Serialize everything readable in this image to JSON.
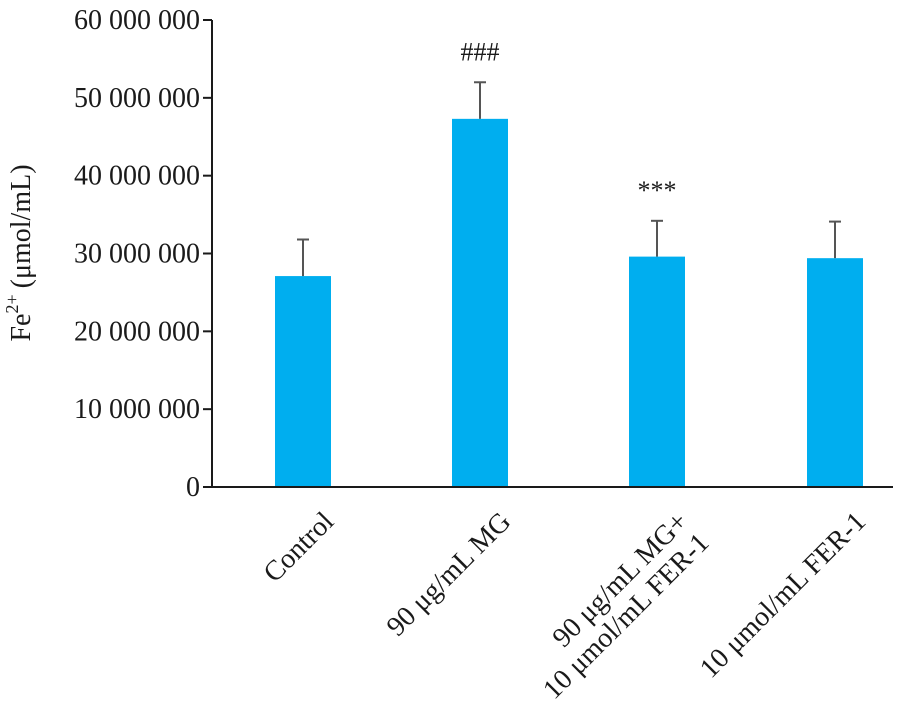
{
  "chart_data": {
    "type": "bar",
    "title": "",
    "ylabel": {
      "base": "Fe",
      "superscript": "2+",
      "unit": "(μmol/mL)"
    },
    "xlabel": "",
    "ylim": [
      0,
      60000000
    ],
    "yticks": [
      0,
      10000000,
      20000000,
      30000000,
      40000000,
      50000000,
      60000000
    ],
    "ytick_labels": [
      "0",
      "10 000 000",
      "20 000 000",
      "30 000 000",
      "40 000 000",
      "50 000 000",
      "60 000 000"
    ],
    "categories": [
      [
        "Control"
      ],
      [
        "90 μg/mL MG"
      ],
      [
        "90 μg/mL MG+",
        "10 μmol/mL FER-1"
      ],
      [
        "10 μmol/mL FER-1"
      ]
    ],
    "values": [
      27100000,
      47300000,
      29600000,
      29400000
    ],
    "errors": [
      4700000,
      4700000,
      4600000,
      4700000
    ],
    "significance": [
      "",
      "###",
      "***",
      ""
    ],
    "bar_color": "#00AEEF",
    "error_color": "#555555",
    "axis_color": "#1a1a1a",
    "grid": false,
    "legend": "none"
  }
}
